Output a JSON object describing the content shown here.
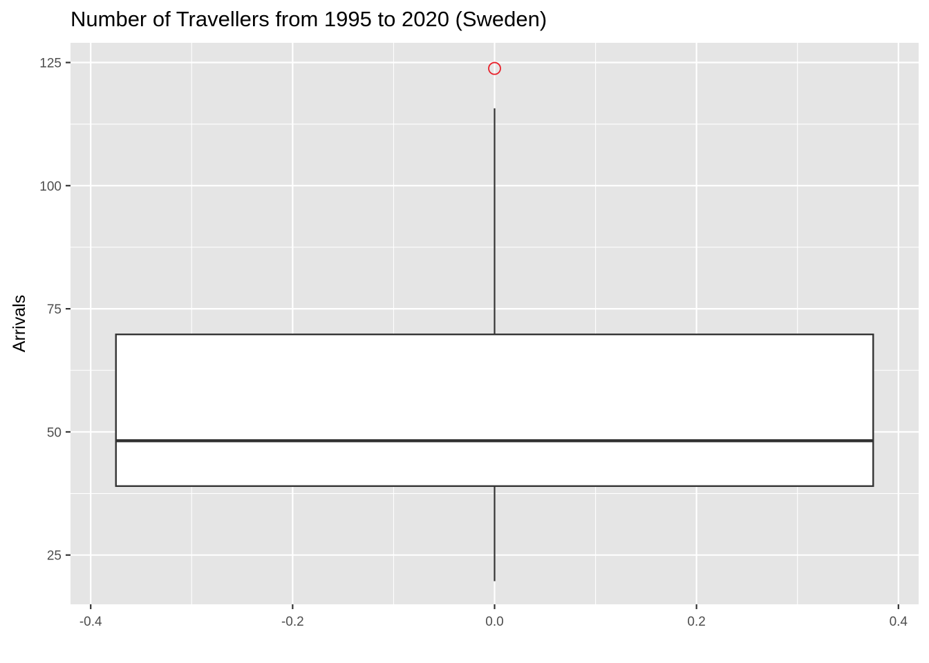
{
  "chart_data": {
    "type": "boxplot",
    "title": "Number of Travellers from 1995 to 2020 (Sweden)",
    "xlabel": "",
    "ylabel": "Arrivals",
    "xlim": [
      -0.42,
      0.42
    ],
    "ylim": [
      15,
      129
    ],
    "x_ticks": [
      -0.4,
      -0.2,
      0.0,
      0.2,
      0.4
    ],
    "x_tick_labels": [
      "-0.4",
      "-0.2",
      "0.0",
      "0.2",
      "0.4"
    ],
    "y_ticks": [
      25,
      50,
      75,
      100,
      125
    ],
    "y_tick_labels": [
      "25",
      "50",
      "75",
      "100",
      "125"
    ],
    "grid": true,
    "box": {
      "x_center": 0.0,
      "x_min": -0.375,
      "x_max": 0.375,
      "whisker_low": 19.7,
      "q1": 39,
      "median": 48.2,
      "q3": 69.8,
      "whisker_high": 115.7
    },
    "outliers": [
      {
        "x": 0.0,
        "y": 123.8
      }
    ],
    "colors": {
      "panel": "#e5e5e5",
      "grid": "#ffffff",
      "box_fill": "#ffffff",
      "box_line": "#333333",
      "outlier": "#e8202a",
      "tick": "#333333"
    }
  }
}
